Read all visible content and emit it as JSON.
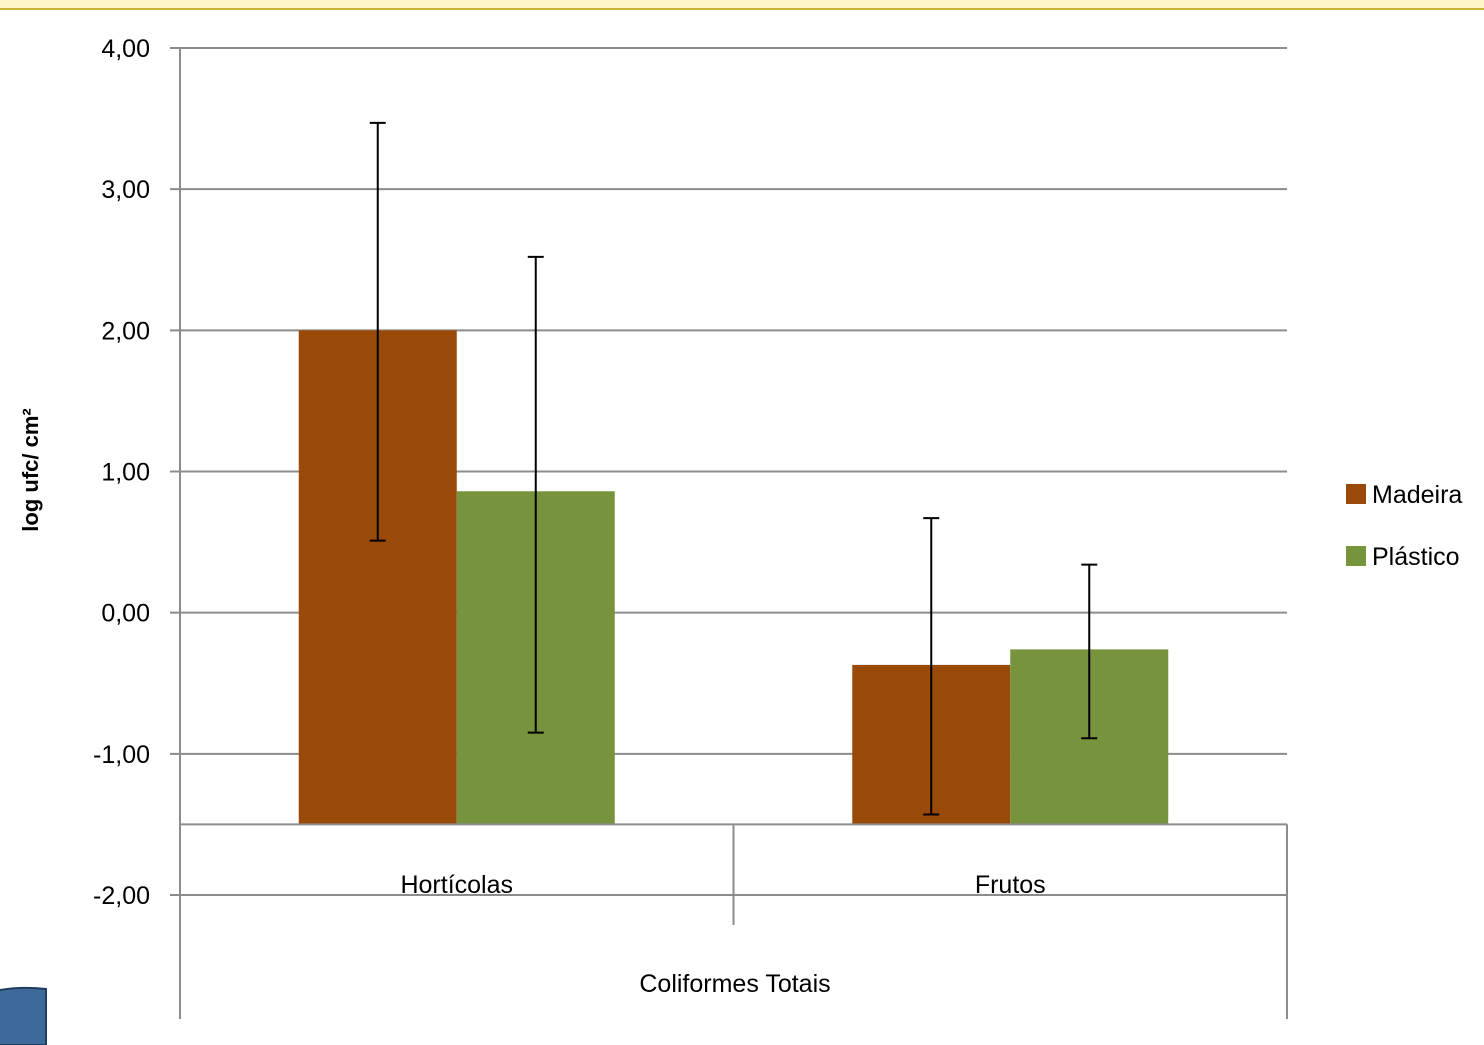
{
  "chart_data": {
    "type": "bar",
    "title": "",
    "ylabel": "log ufc/ cm²",
    "xlabel": "",
    "group_label": "Coliformes Totais",
    "categories": [
      "Hortícolas",
      "Frutos"
    ],
    "ylim": [
      -2.0,
      4.0
    ],
    "yticks": [
      4.0,
      3.0,
      2.0,
      1.0,
      0.0,
      -1.0,
      -2.0
    ],
    "ytick_labels": [
      "4,00",
      "3,00",
      "2,00",
      "1,00",
      "0,00",
      "-1,00",
      "-2,00"
    ],
    "grid": true,
    "legend_position": "right",
    "series": [
      {
        "name": "Madeira",
        "color": "#994a09",
        "values": [
          2.0,
          -0.37
        ],
        "error_low": [
          0.51,
          -1.43
        ],
        "error_high": [
          3.47,
          0.67
        ]
      },
      {
        "name": "Plástico",
        "color": "#77933c",
        "values": [
          0.86,
          -0.26
        ],
        "error_low": [
          -0.85,
          -0.89
        ],
        "error_high": [
          2.52,
          0.34
        ]
      }
    ]
  }
}
